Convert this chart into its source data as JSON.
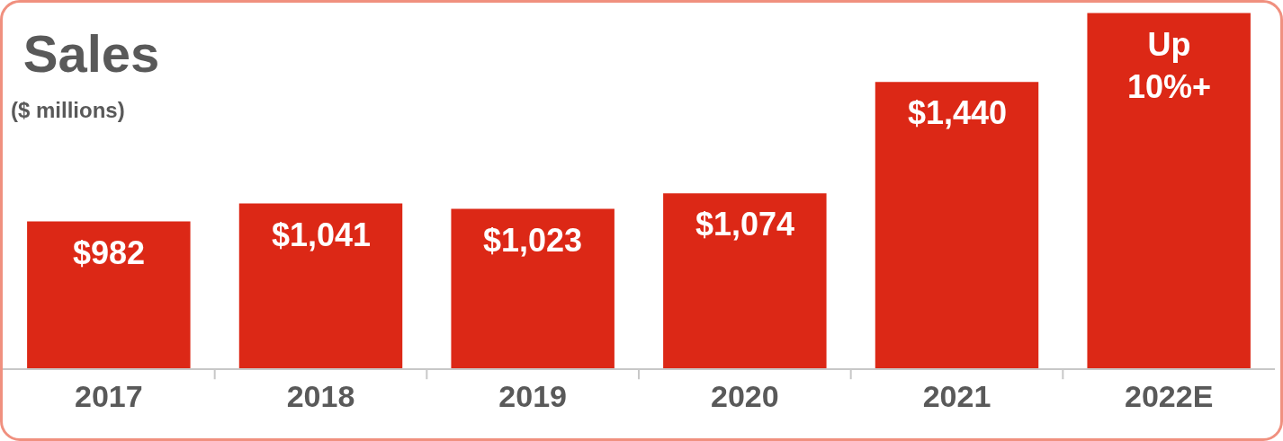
{
  "chart_data": {
    "type": "bar",
    "title": "Sales",
    "subtitle": "($ millions)",
    "categories": [
      "2017",
      "2018",
      "2019",
      "2020",
      "2021",
      "2022E"
    ],
    "values": [
      982,
      1041,
      1023,
      1074,
      1440,
      1666
    ],
    "value_labels": [
      "$982",
      "$1,041",
      "$1,023",
      "$1,074",
      "$1,440",
      "Up\n10%+"
    ],
    "color": "#dc2816",
    "ylim": [
      500,
      1700
    ],
    "tick_labels": "x"
  }
}
